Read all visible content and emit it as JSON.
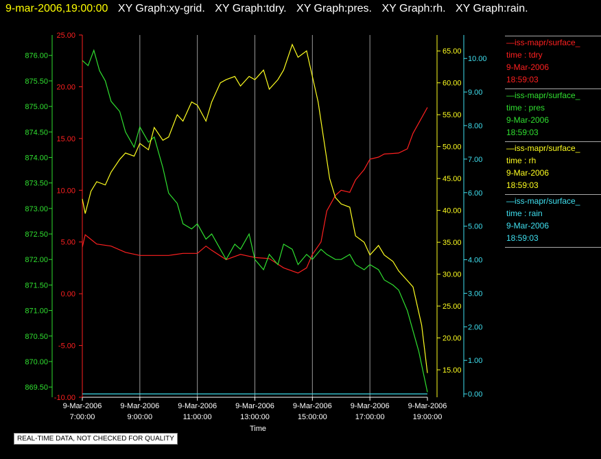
{
  "header": {
    "timestamp": "9-mar-2006,19:00:00",
    "graph_titles": [
      "XY Graph:xy-grid.",
      "XY Graph:tdry.",
      "XY Graph:pres.",
      "XY Graph:rh.",
      "XY Graph:rain."
    ]
  },
  "legend": [
    {
      "source": "—iss-mapr/surface_",
      "field": "time : tdry",
      "date": "9-Mar-2006",
      "time": "18:59:03",
      "color": "#ff2020"
    },
    {
      "source": "—iss-mapr/surface_",
      "field": "time : pres",
      "date": "9-Mar-2006",
      "time": "18:59:03",
      "color": "#30e030"
    },
    {
      "source": "—iss-mapr/surface_",
      "field": "time : rh",
      "date": "9-Mar-2006",
      "time": "18:59:03",
      "color": "#ffff20"
    },
    {
      "source": "—iss-mapr/surface_",
      "field": "time : rain",
      "date": "9-Mar-2006",
      "time": "18:59:03",
      "color": "#40e0f0"
    }
  ],
  "note": "REAL-TIME DATA, NOT CHECKED FOR QUALITY",
  "chart_data": {
    "type": "line",
    "xlabel": "Time",
    "x_ticks": [
      {
        "hour": 7,
        "label_date": "9-Mar-2006",
        "label_time": "7:00:00"
      },
      {
        "hour": 9,
        "label_date": "9-Mar-2006",
        "label_time": "9:00:00"
      },
      {
        "hour": 11,
        "label_date": "9-Mar-2006",
        "label_time": "11:00:00"
      },
      {
        "hour": 13,
        "label_date": "9-Mar-2006",
        "label_time": "13:00:00"
      },
      {
        "hour": 15,
        "label_date": "9-Mar-2006",
        "label_time": "15:00:00"
      },
      {
        "hour": 17,
        "label_date": "9-Mar-2006",
        "label_time": "17:00:00"
      },
      {
        "hour": 19,
        "label_date": "9-Mar-2006",
        "label_time": "19:00:00"
      }
    ],
    "xlim": [
      7,
      19
    ],
    "grid": "vertical",
    "axes": {
      "pres": {
        "color": "#30e030",
        "ylim": [
          869.3,
          876.4
        ],
        "ticks": [
          "869.50",
          "870.00",
          "870.50",
          "871.00",
          "871.50",
          "872.00",
          "872.50",
          "873.00",
          "873.50",
          "874.00",
          "874.50",
          "875.00",
          "875.50",
          "876.00"
        ]
      },
      "tdry": {
        "color": "#ff2020",
        "ylim": [
          -10,
          25
        ],
        "ticks": [
          "-10.00",
          "-5.00",
          "0.00",
          "5.00",
          "10.00",
          "15.00",
          "20.00",
          "25.00"
        ]
      },
      "rh": {
        "color": "#ffff20",
        "ylim": [
          10.7,
          67.5
        ],
        "ticks": [
          "15.00",
          "20.00",
          "25.00",
          "30.00",
          "35.00",
          "40.00",
          "45.00",
          "50.00",
          "55.00",
          "60.00",
          "65.00"
        ]
      },
      "rain": {
        "color": "#40e0f0",
        "ylim": [
          -0.1,
          10.7
        ],
        "ticks": [
          "0.00",
          "1.00",
          "2.00",
          "3.00",
          "4.00",
          "5.00",
          "6.00",
          "7.00",
          "8.00",
          "9.00",
          "10.00"
        ]
      }
    },
    "series": [
      {
        "name": "tdry",
        "axis": "tdry",
        "color": "#ff2020",
        "x": [
          7.0,
          7.1,
          7.5,
          8.0,
          8.5,
          9.0,
          9.5,
          10.0,
          10.5,
          11.0,
          11.3,
          11.5,
          12.0,
          12.5,
          13.0,
          13.5,
          14.0,
          14.5,
          14.8,
          15.0,
          15.3,
          15.5,
          15.8,
          16.0,
          16.3,
          16.5,
          16.8,
          17.0,
          17.3,
          17.5,
          18.0,
          18.3,
          18.5,
          18.8,
          19.0
        ],
        "y": [
          4.5,
          5.7,
          4.8,
          4.6,
          4.0,
          3.7,
          3.7,
          3.7,
          3.9,
          3.9,
          4.6,
          4.2,
          3.3,
          3.8,
          3.5,
          3.4,
          2.5,
          2.0,
          2.5,
          3.8,
          5.0,
          8.0,
          9.5,
          10.0,
          9.8,
          11.0,
          12.0,
          13.0,
          13.2,
          13.5,
          13.6,
          14.0,
          15.5,
          17.0,
          18.0
        ]
      },
      {
        "name": "pres",
        "axis": "pres",
        "color": "#30e030",
        "x": [
          7.0,
          7.2,
          7.4,
          7.6,
          7.8,
          8.0,
          8.3,
          8.5,
          8.8,
          9.0,
          9.3,
          9.5,
          9.8,
          10.0,
          10.3,
          10.5,
          10.8,
          11.0,
          11.3,
          11.5,
          11.8,
          12.0,
          12.3,
          12.5,
          12.8,
          13.0,
          13.3,
          13.5,
          13.8,
          14.0,
          14.3,
          14.5,
          14.8,
          15.0,
          15.3,
          15.5,
          15.8,
          16.0,
          16.3,
          16.5,
          16.8,
          17.0,
          17.3,
          17.5,
          17.8,
          18.0,
          18.3,
          18.5,
          18.7,
          19.0
        ],
        "y": [
          875.9,
          875.8,
          876.1,
          875.7,
          875.5,
          875.1,
          874.9,
          874.5,
          874.2,
          874.6,
          874.3,
          874.4,
          873.8,
          873.3,
          873.1,
          872.7,
          872.6,
          872.7,
          872.4,
          872.5,
          872.2,
          872.0,
          872.3,
          872.2,
          872.5,
          872.0,
          871.8,
          872.1,
          871.9,
          872.3,
          872.2,
          871.9,
          872.1,
          872.0,
          872.2,
          872.1,
          872.0,
          872.0,
          872.1,
          871.9,
          871.8,
          871.9,
          871.8,
          871.6,
          871.5,
          871.4,
          871.0,
          870.6,
          870.2,
          869.4
        ]
      },
      {
        "name": "rh",
        "axis": "rh",
        "color": "#ffff20",
        "x": [
          7.0,
          7.1,
          7.3,
          7.5,
          7.8,
          8.0,
          8.3,
          8.5,
          8.8,
          9.0,
          9.3,
          9.5,
          9.8,
          10.0,
          10.3,
          10.5,
          10.8,
          11.0,
          11.3,
          11.5,
          11.8,
          12.0,
          12.3,
          12.5,
          12.8,
          13.0,
          13.3,
          13.5,
          13.8,
          14.0,
          14.3,
          14.5,
          14.8,
          15.0,
          15.2,
          15.4,
          15.6,
          15.8,
          16.0,
          16.3,
          16.5,
          16.8,
          17.0,
          17.3,
          17.5,
          17.8,
          18.0,
          18.3,
          18.5,
          18.8,
          19.0
        ],
        "y": [
          41.8,
          39.5,
          43.0,
          44.5,
          44.0,
          46.0,
          48.0,
          49.0,
          48.5,
          50.5,
          49.5,
          53.0,
          51.0,
          51.5,
          55.0,
          54.0,
          57.0,
          56.5,
          54.0,
          57.0,
          60.0,
          60.5,
          61.0,
          59.5,
          61.0,
          60.5,
          62.0,
          59.0,
          60.5,
          62.0,
          66.0,
          64.0,
          65.0,
          61.0,
          57.0,
          51.0,
          45.0,
          42.0,
          41.0,
          40.5,
          36.0,
          35.0,
          33.0,
          34.5,
          33.0,
          32.0,
          30.5,
          29.0,
          28.0,
          22.0,
          14.5
        ]
      },
      {
        "name": "rain",
        "axis": "rain",
        "color": "#40e0f0",
        "x": [
          7.0,
          19.0
        ],
        "y": [
          0.0,
          0.0
        ]
      }
    ]
  }
}
